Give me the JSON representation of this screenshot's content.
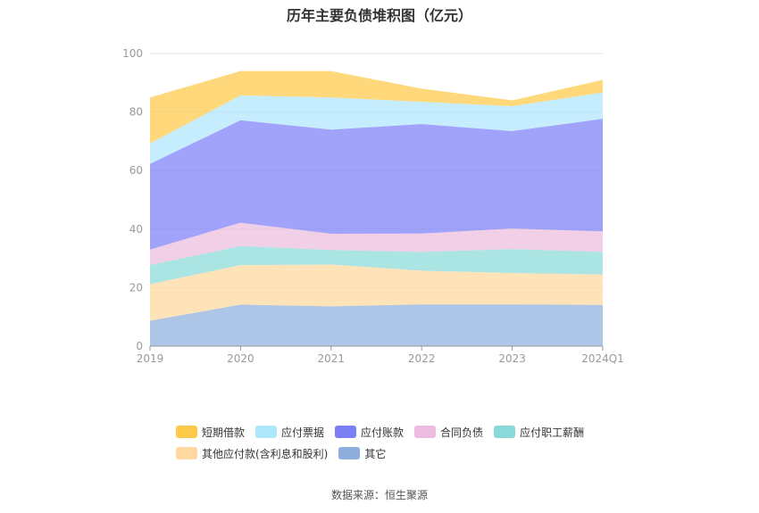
{
  "chart_data": {
    "type": "area",
    "title": "历年主要负债堆积图（亿元）",
    "categories": [
      "2019",
      "2020",
      "2021",
      "2022",
      "2023",
      "2024Q1"
    ],
    "ylim": [
      0,
      100
    ],
    "yticks": [
      0,
      20,
      40,
      60,
      80,
      100
    ],
    "grid": true,
    "legend_position": "bottom",
    "stacking": "stacked",
    "series": [
      {
        "name": "其它",
        "color": "#8eaedc",
        "values": [
          8.7,
          14.2,
          13.6,
          14.3,
          14.3,
          14.1
        ]
      },
      {
        "name": "其他应付款(含利息和股利)",
        "color": "#fed89e",
        "values": [
          12.5,
          13.5,
          14.3,
          11.5,
          10.7,
          10.4
        ]
      },
      {
        "name": "应付职工薪酬",
        "color": "#89d9d8",
        "values": [
          6.5,
          6.5,
          5.0,
          6.4,
          8.2,
          7.7
        ]
      },
      {
        "name": "合同负债",
        "color": "#ebbcdd",
        "values": [
          5.3,
          8.0,
          5.5,
          6.3,
          7.0,
          7.0
        ]
      },
      {
        "name": "应付账款",
        "color": "#7b7ff6",
        "values": [
          29.3,
          35.0,
          35.6,
          37.4,
          33.3,
          38.5
        ]
      },
      {
        "name": "应付票据",
        "color": "#aee6fc",
        "values": [
          7.0,
          8.5,
          11.0,
          7.6,
          8.5,
          9.0
        ]
      },
      {
        "name": "短期借款",
        "color": "#ffc94a",
        "values": [
          15.7,
          8.3,
          9.0,
          4.5,
          2.0,
          4.3
        ]
      }
    ],
    "legend_order": [
      "短期借款",
      "应付票据",
      "应付账款",
      "合同负债",
      "应付职工薪酬",
      "其他应付款(含利息和股利)",
      "其它"
    ]
  },
  "source": "数据来源：恒生聚源"
}
